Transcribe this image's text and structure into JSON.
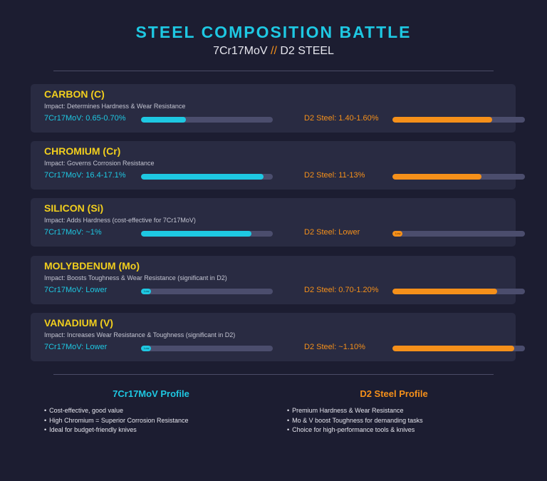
{
  "title": "STEEL COMPOSITION BATTLE",
  "subtitle": {
    "left": "7Cr17MoV",
    "sep": "//",
    "right": "D2 STEEL"
  },
  "colors": {
    "steel_a": "#1ec8e2",
    "steel_b": "#f5901a",
    "element_name": "#f2cf1d",
    "background": "#1c1d31",
    "card": "#292b42",
    "track": "#4b4d6d"
  },
  "chart_data": {
    "type": "bar",
    "orientation": "horizontal",
    "title": "STEEL COMPOSITION BATTLE",
    "series": [
      {
        "name": "7Cr17MoV",
        "color": "#1ec8e2"
      },
      {
        "name": "D2 Steel",
        "color": "#f5901a"
      }
    ],
    "elements": [
      {
        "name": "CARBON (C)",
        "impact": "Impact: Determines Hardness & Wear Resistance",
        "a_label": "7Cr17MoV: 0.65-0.70%",
        "a_fill": 0.34,
        "a_fill_tag": "",
        "b_label": "D2 Steel: 1.40-1.60%",
        "b_fill": 0.75,
        "b_fill_tag": ""
      },
      {
        "name": "CHROMIUM (Cr)",
        "impact": "Impact: Governs Corrosion Resistance",
        "a_label": "7Cr17MoV: 16.4-17.1%",
        "a_fill": 0.93,
        "a_fill_tag": "",
        "b_label": "D2 Steel: 11-13%",
        "b_fill": 0.67,
        "b_fill_tag": ""
      },
      {
        "name": "SILICON (Si)",
        "impact": "Impact: Adds Hardness (cost-effective for 7Cr17MoV)",
        "a_label": "7Cr17MoV: ~1%",
        "a_fill": 0.84,
        "a_fill_tag": "",
        "b_label": "D2 Steel: Lower",
        "b_fill": 0.07,
        "b_fill_tag": "Low"
      },
      {
        "name": "MOLYBDENUM (Mo)",
        "impact": "Impact: Boosts Toughness & Wear Resistance (significant in D2)",
        "a_label": "7Cr17MoV: Lower",
        "a_fill": 0.07,
        "a_fill_tag": "Low",
        "b_label": "D2 Steel: 0.70-1.20%",
        "b_fill": 0.79,
        "b_fill_tag": ""
      },
      {
        "name": "VANADIUM (V)",
        "impact": "Impact: Increases Wear Resistance & Toughness (significant in D2)",
        "a_label": "7Cr17MoV: Lower",
        "a_fill": 0.07,
        "a_fill_tag": "Low",
        "b_label": "D2 Steel: ~1.10%",
        "b_fill": 0.92,
        "b_fill_tag": ""
      }
    ]
  },
  "profiles": [
    {
      "title": "7Cr17MoV Profile",
      "points": [
        "Cost-effective, good value",
        "High Chromium = Superior Corrosion Resistance",
        "Ideal for budget-friendly knives"
      ]
    },
    {
      "title": "D2 Steel Profile",
      "points": [
        "Premium Hardness & Wear Resistance",
        "Mo & V boost Toughness for demanding tasks",
        "Choice for high-performance tools & knives"
      ]
    }
  ]
}
